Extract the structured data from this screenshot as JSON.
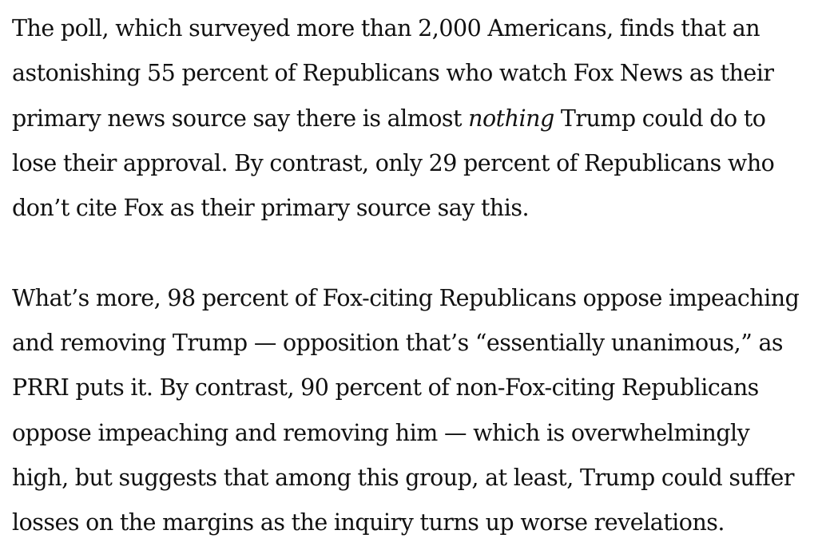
{
  "article": {
    "paragraph_1": {
      "line_1": "The poll, which surveyed more than 2,000 Americans, finds that an",
      "line_2": "astonishing 55 percent of Republicans who watch Fox News as their",
      "line_3_before": "primary news source say there is almost ",
      "line_3_emphasis": "nothing",
      "line_3_after": " Trump could do to",
      "line_4": "lose their approval. By contrast, only 29 percent of Republicans who",
      "line_5": "don’t cite Fox as their primary source say this."
    },
    "paragraph_2": {
      "line_1": "What’s more, 98 percent of Fox-citing Republicans oppose impeaching",
      "line_2": "and removing Trump — opposition that’s “essentially unanimous,” as",
      "line_3": "PRRI puts it. By contrast, 90 percent of non-Fox-citing Republicans",
      "line_4": "oppose impeaching and removing him — which is overwhelmingly",
      "line_5": "high, but suggests that among this group, at least, Trump could suffer",
      "line_6": "losses on the margins as the inquiry turns up worse revelations."
    }
  }
}
